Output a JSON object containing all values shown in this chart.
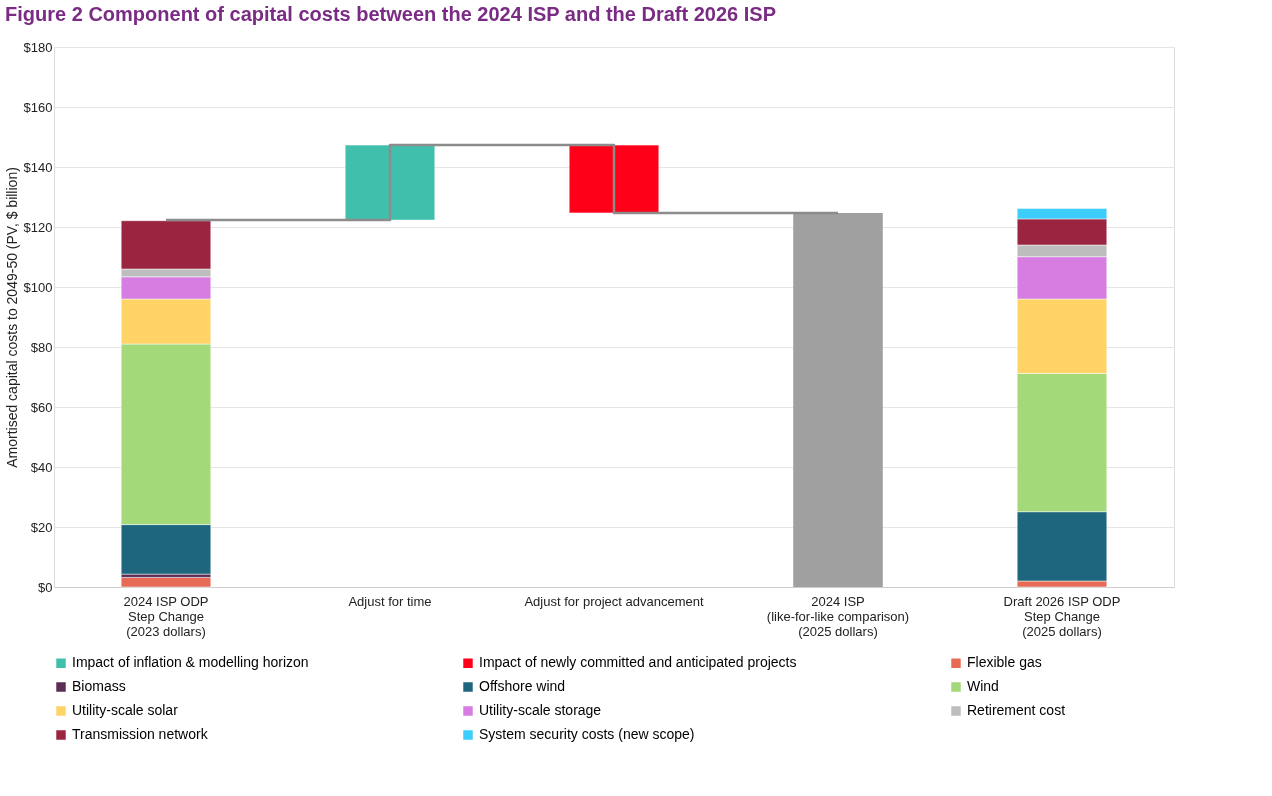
{
  "chart_data": {
    "type": "bar",
    "title": "Figure 2      Component of capital costs between the 2024 ISP and the Draft 2026 ISP",
    "ylabel": "Amortised capital costs to 2049-50 (PV, $ billion)",
    "categories": [
      "2024 ISP ODP\nStep Change\n(2023 dollars)",
      "Adjust for time",
      "Adjust for project advancement",
      "2024 ISP\n(like-for-like comparison)\n(2025 dollars)",
      "Draft 2026 ISP ODP\nStep Change\n(2025 dollars)"
    ],
    "stacked": true,
    "series": [
      {
        "name": "Impact of inflation & modelling horizon",
        "color": "#40c0ac",
        "values": [
          null,
          25.0,
          null,
          null,
          null
        ],
        "base": [
          null,
          122.3,
          null,
          null,
          null
        ]
      },
      {
        "name": "Impact of newly committed and anticipated projects",
        "color": "#ff0019",
        "values": [
          null,
          null,
          -22.6,
          null,
          null
        ],
        "base": [
          null,
          null,
          147.3,
          null,
          null
        ]
      },
      {
        "name": "Flexible gas",
        "color": "#e66a55",
        "values": [
          3.2,
          null,
          null,
          null,
          2.0
        ]
      },
      {
        "name": "Biomass",
        "color": "#5c2d55",
        "values": [
          1.1,
          null,
          null,
          null,
          null
        ]
      },
      {
        "name": "Offshore wind",
        "color": "#1d667e",
        "values": [
          16.5,
          null,
          null,
          null,
          23.1
        ]
      },
      {
        "name": "Wind",
        "color": "#a3d979",
        "values": [
          60.2,
          null,
          null,
          null,
          46.1
        ]
      },
      {
        "name": "Utility-scale solar",
        "color": "#ffd366",
        "values": [
          15.0,
          null,
          null,
          null,
          24.8
        ]
      },
      {
        "name": "Utility-scale storage",
        "color": "#d77ce0",
        "values": [
          7.4,
          null,
          null,
          null,
          14.1
        ]
      },
      {
        "name": "Retirement cost",
        "color": "#bdbdbd",
        "values": [
          2.6,
          null,
          null,
          null,
          3.9
        ]
      },
      {
        "name": "Transmission network",
        "color": "#9b2440",
        "values": [
          16.1,
          null,
          null,
          null,
          8.7
        ]
      },
      {
        "name": "System security costs (new scope)",
        "color": "#3ccdfa",
        "values": [
          null,
          null,
          null,
          null,
          3.5
        ]
      },
      {
        "color": "#a0a0a0",
        "values": [
          null,
          null,
          null,
          124.7,
          null
        ]
      },
      {
        "type": "step",
        "color": "#8c8c8c",
        "values": [
          122.3,
          147.3,
          124.7,
          124.7,
          null
        ]
      }
    ],
    "ylim": [
      0,
      180
    ],
    "yticks": [
      {
        "value": 0,
        "label": "$0"
      },
      {
        "value": 20,
        "label": "$20"
      },
      {
        "value": 40,
        "label": "$40"
      },
      {
        "value": 60,
        "label": "$60"
      },
      {
        "value": 80,
        "label": "$80"
      },
      {
        "value": 100,
        "label": "$100"
      },
      {
        "value": 120,
        "label": "$120"
      },
      {
        "value": 140,
        "label": "$140"
      },
      {
        "value": 160,
        "label": "$160"
      },
      {
        "value": 180,
        "label": "$180"
      }
    ],
    "grid": "y",
    "legend": "bottom"
  }
}
